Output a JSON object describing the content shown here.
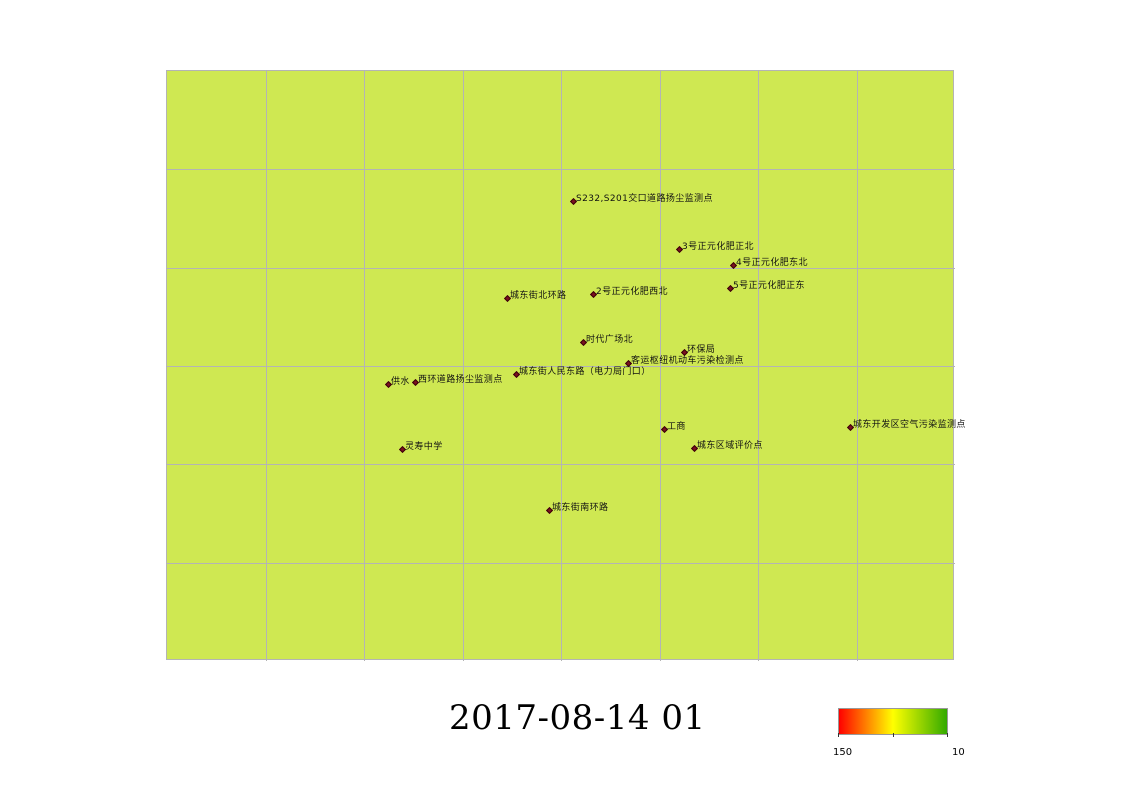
{
  "map": {
    "fill_color": "#cfe852",
    "grid_color": "#b4b4b4",
    "grid_columns": 8,
    "grid_rows": 6,
    "stations": [
      {
        "name": "S232,S201交口道路扬尘监测点"
      },
      {
        "name": "3号正元化肥正北"
      },
      {
        "name": "4号正元化肥东北"
      },
      {
        "name": "城东街北环路"
      },
      {
        "name": "2号正元化肥西北"
      },
      {
        "name": "5号正元化肥正东"
      },
      {
        "name": "时代广场北"
      },
      {
        "name": "环保局"
      },
      {
        "name": "客运枢纽机动车污染检测点"
      },
      {
        "name": "城东街人民东路（电力局门口）"
      },
      {
        "name": "供水"
      },
      {
        "name": "西环道路扬尘监测点"
      },
      {
        "name": "工商"
      },
      {
        "name": "城东开发区空气污染监测点"
      },
      {
        "name": "灵寿中学"
      },
      {
        "name": "城东区域评价点"
      },
      {
        "name": "城东街南环路"
      }
    ]
  },
  "timestamp": "2017-08-14 01",
  "legend": {
    "max_label": "150",
    "min_label": "10",
    "colors": [
      "#ff0000",
      "#ffff00",
      "#33aa00"
    ]
  }
}
